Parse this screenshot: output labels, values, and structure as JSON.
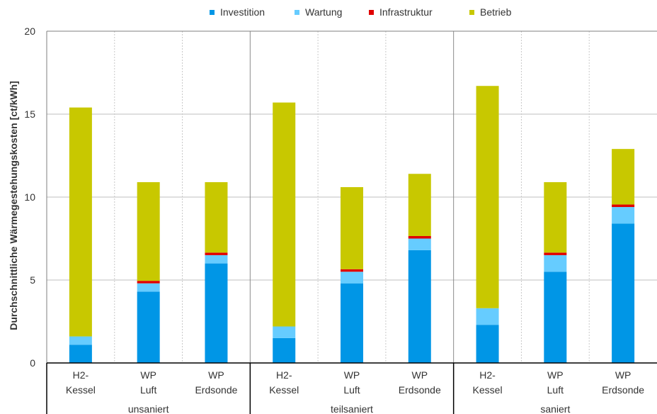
{
  "chart_data": {
    "type": "bar",
    "stacked": true,
    "ylabel": "Durchschnittliche Wärmegestehungskosten [ct/kWh]",
    "ylim": [
      0,
      20
    ],
    "yticks": [
      "0",
      "5",
      "10",
      "15",
      "20"
    ],
    "grid": true,
    "legend_position": "top",
    "categories": [
      {
        "line1": "H2-",
        "line2": "Kessel"
      },
      {
        "line1": "WP",
        "line2": "Luft"
      },
      {
        "line1": "WP",
        "line2": "Erdsonde"
      },
      {
        "line1": "H2-",
        "line2": "Kessel"
      },
      {
        "line1": "WP",
        "line2": "Luft"
      },
      {
        "line1": "WP",
        "line2": "Erdsonde"
      },
      {
        "line1": "H2-",
        "line2": "Kessel"
      },
      {
        "line1": "WP",
        "line2": "Luft"
      },
      {
        "line1": "WP",
        "line2": "Erdsonde"
      }
    ],
    "groups": [
      "unsaniert",
      "teilsaniert",
      "saniert"
    ],
    "series": [
      {
        "name": "Investition",
        "color": "#0096e6",
        "values": [
          1.1,
          4.3,
          6.0,
          1.5,
          4.8,
          6.8,
          2.3,
          5.5,
          8.4
        ]
      },
      {
        "name": "Wartung",
        "color": "#66ccff",
        "values": [
          0.5,
          0.5,
          0.5,
          0.7,
          0.7,
          0.7,
          1.0,
          1.0,
          1.0
        ]
      },
      {
        "name": "Infrastruktur",
        "color": "#e00000",
        "values": [
          0.0,
          0.15,
          0.15,
          0.0,
          0.15,
          0.15,
          0.0,
          0.15,
          0.15
        ]
      },
      {
        "name": "Betrieb",
        "color": "#c8c800",
        "values": [
          13.8,
          5.95,
          4.25,
          13.5,
          4.95,
          3.75,
          13.4,
          4.25,
          3.35
        ]
      }
    ]
  }
}
